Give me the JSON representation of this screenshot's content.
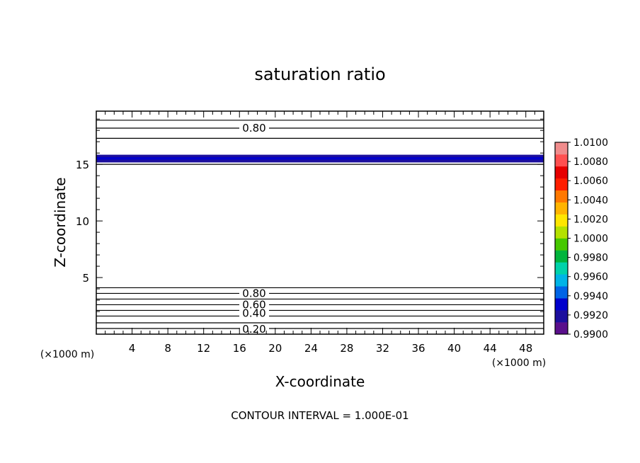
{
  "chart_data": {
    "type": "contour",
    "title": "saturation ratio",
    "xlabel": "X-coordinate",
    "ylabel": "Z-coordinate",
    "x_unit_label": "(×1000 m)",
    "y_unit_label": "(×1000 m)",
    "xlim": [
      0,
      50
    ],
    "ylim": [
      0,
      19.7
    ],
    "x_ticks": [
      4,
      8,
      12,
      16,
      20,
      24,
      28,
      32,
      36,
      40,
      44,
      48
    ],
    "y_ticks": [
      5,
      10,
      15
    ],
    "contour_interval_label": "CONTOUR INTERVAL = 1.000E-01",
    "contour_levels_z": [
      0.5,
      1.0,
      1.6,
      2.1,
      2.6,
      3.1,
      3.6,
      4.1,
      15.0,
      17.3,
      18.2,
      18.9
    ],
    "contour_labels": [
      {
        "text": "0.80",
        "z": 18.2
      },
      {
        "text": "0.80",
        "z": 3.6
      },
      {
        "text": "0.60",
        "z": 2.6
      },
      {
        "text": "0.40",
        "z": 1.85
      },
      {
        "text": "0.20",
        "z": 0.45
      }
    ],
    "shaded_band": {
      "z_min": 15.2,
      "z_max": 15.85,
      "value_range": [
        0.99,
        0.994
      ]
    },
    "colorbar": {
      "tick_labels": [
        "0.9900",
        "0.9920",
        "0.9940",
        "0.9960",
        "0.9980",
        "1.0000",
        "1.0020",
        "1.0040",
        "1.0060",
        "1.0080",
        "1.0100"
      ],
      "colors": [
        "#5a0f8c",
        "#1c0f9e",
        "#0000cc",
        "#0064e6",
        "#00b4e6",
        "#00d2aa",
        "#00b43c",
        "#46c800",
        "#b4e100",
        "#ffe600",
        "#ffb400",
        "#ff7800",
        "#ff1e00",
        "#e60000",
        "#ff5050",
        "#f08c8c"
      ]
    }
  }
}
